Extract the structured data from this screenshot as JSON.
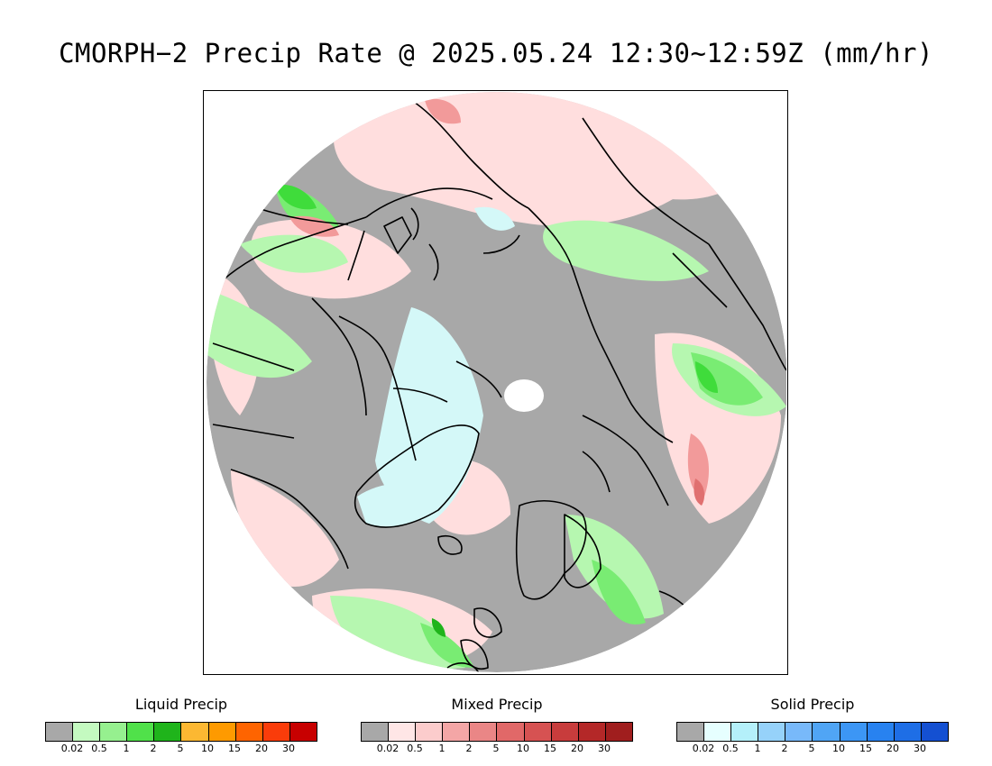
{
  "title": "CMORPH−2 Precip Rate @ 2025.05.24 12:30~12:59Z (mm/hr)",
  "map": {
    "colors": {
      "background_gray": "#a8a8a8",
      "ocean_pink": "#ffdede",
      "pale_green": "#b6f7b0",
      "green": "#79ec73",
      "bright_green": "#3fdc3b",
      "dark_green": "#1fb41b",
      "pale_cyan": "#d4f8f8",
      "mixed_mid": "#f29a9a",
      "mixed_dark": "#e07070",
      "pole_hole": "#ffffff",
      "coastline": "#000000"
    }
  },
  "legends": [
    {
      "title": "Liquid Precip",
      "ticks": [
        "0.02",
        "0.5",
        "1",
        "2",
        "5",
        "10",
        "15",
        "20",
        "30"
      ],
      "colors": [
        "#a8a8a8",
        "#c4fac0",
        "#96f08f",
        "#50e14a",
        "#1fb41b",
        "#fcb832",
        "#fe9a00",
        "#fe6400",
        "#fa3c0a",
        "#c80000"
      ]
    },
    {
      "title": "Mixed Precip",
      "ticks": [
        "0.02",
        "0.5",
        "1",
        "2",
        "5",
        "10",
        "15",
        "20",
        "30"
      ],
      "colors": [
        "#a8a8a8",
        "#ffe6e6",
        "#fccccc",
        "#f4a6a6",
        "#ea8686",
        "#e16868",
        "#d65252",
        "#c83c3c",
        "#b42828",
        "#a01e1e"
      ]
    },
    {
      "title": "Solid Precip",
      "ticks": [
        "0.02",
        "0.5",
        "1",
        "2",
        "5",
        "10",
        "15",
        "20",
        "30"
      ],
      "colors": [
        "#a8a8a8",
        "#e6ffff",
        "#b4f0fa",
        "#96d2fa",
        "#78b9fa",
        "#50a5f5",
        "#3c96f5",
        "#2882f0",
        "#1e6ee6",
        "#1450d2"
      ]
    }
  ]
}
